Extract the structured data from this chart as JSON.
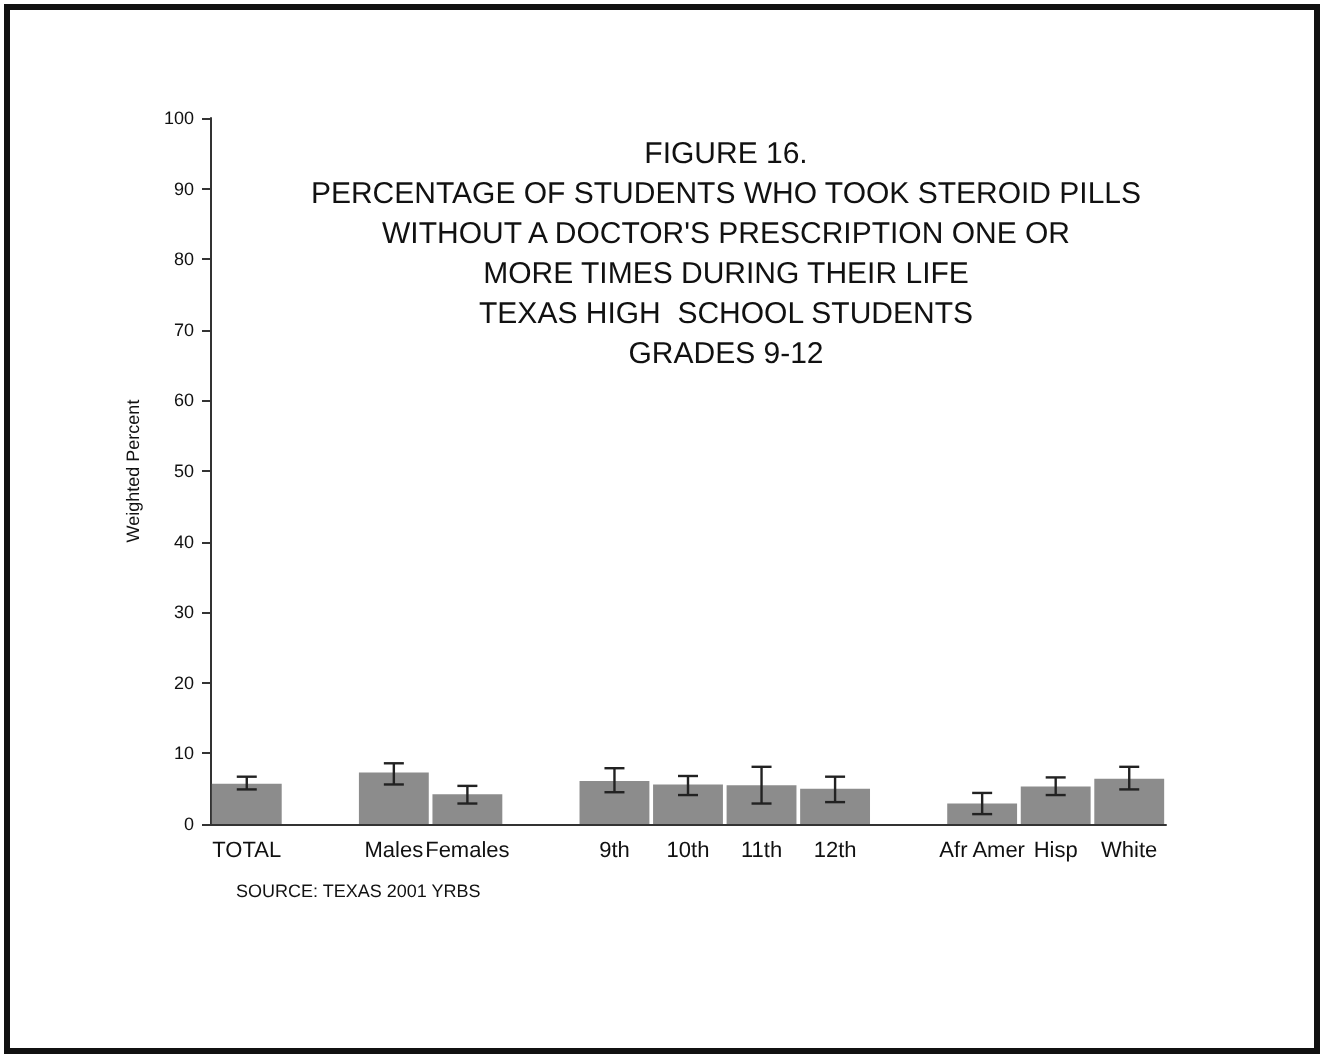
{
  "chart_data": {
    "type": "bar",
    "title": "FIGURE 16.\nPERCENTAGE OF STUDENTS WHO TOOK STEROID PILLS\nWITHOUT A DOCTOR'S PRESCRIPTION ONE OR\nMORE TIMES DURING THEIR LIFE\nTEXAS HIGH  SCHOOL STUDENTS\nGRADES 9-12",
    "ylabel": "Weighted Percent",
    "categories": [
      "TOTAL",
      null,
      "Males",
      "Females",
      null,
      "9th",
      "10th",
      "11th",
      "12th",
      null,
      "Afr Amer",
      "Hisp",
      "White"
    ],
    "values": [
      5.7,
      null,
      7.3,
      4.2,
      null,
      6.1,
      5.6,
      5.5,
      5.0,
      null,
      2.9,
      5.3,
      6.4
    ],
    "errors": [
      [
        4.9,
        6.7
      ],
      null,
      [
        5.6,
        8.6
      ],
      [
        2.9,
        5.4
      ],
      null,
      [
        4.5,
        7.9
      ],
      [
        4.1,
        6.8
      ],
      [
        2.9,
        8.1
      ],
      [
        3.1,
        6.7
      ],
      null,
      [
        1.4,
        4.4
      ],
      [
        4.1,
        6.6
      ],
      [
        4.9,
        8.1
      ]
    ],
    "color": "#8c8c8c",
    "ylim": [
      0,
      100
    ],
    "yticks": [
      0,
      10,
      20,
      30,
      40,
      50,
      60,
      70,
      80,
      90,
      100
    ],
    "grid": false,
    "annotations": [
      "SOURCE: TEXAS 2001 YRBS"
    ]
  }
}
